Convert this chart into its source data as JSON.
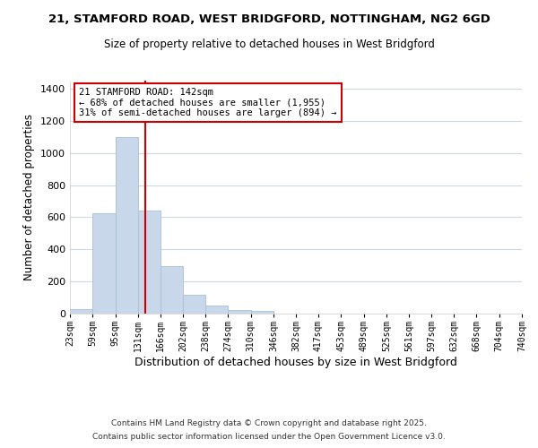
{
  "title_line1": "21, STAMFORD ROAD, WEST BRIDGFORD, NOTTINGHAM, NG2 6GD",
  "title_line2": "Size of property relative to detached houses in West Bridgford",
  "xlabel": "Distribution of detached houses by size in West Bridgford",
  "ylabel": "Number of detached properties",
  "bin_edges": [
    23,
    59,
    95,
    131,
    166,
    202,
    238,
    274,
    310,
    346,
    382,
    417,
    453,
    489,
    525,
    561,
    597,
    632,
    668,
    704,
    740
  ],
  "bar_heights": [
    30,
    625,
    1100,
    640,
    295,
    115,
    50,
    20,
    15,
    0,
    0,
    0,
    0,
    0,
    0,
    0,
    0,
    0,
    0,
    0
  ],
  "bar_color": "#c8d8ea",
  "bar_edgecolor": "#a8c0d4",
  "vline_x": 142,
  "vline_color": "#cc0000",
  "vline_linewidth": 1.5,
  "annotation_title": "21 STAMFORD ROAD: 142sqm",
  "annotation_line2": "← 68% of detached houses are smaller (1,955)",
  "annotation_line3": "31% of semi-detached houses are larger (894) →",
  "ylim": [
    0,
    1450
  ],
  "yticks": [
    0,
    200,
    400,
    600,
    800,
    1000,
    1200,
    1400
  ],
  "background_color": "#ffffff",
  "grid_color": "#ccd8e8",
  "footnote_line1": "Contains HM Land Registry data © Crown copyright and database right 2025.",
  "footnote_line2": "Contains public sector information licensed under the Open Government Licence v3.0.",
  "tick_labels": [
    "23sqm",
    "59sqm",
    "95sqm",
    "131sqm",
    "166sqm",
    "202sqm",
    "238sqm",
    "274sqm",
    "310sqm",
    "346sqm",
    "382sqm",
    "417sqm",
    "453sqm",
    "489sqm",
    "525sqm",
    "561sqm",
    "597sqm",
    "632sqm",
    "668sqm",
    "704sqm",
    "740sqm"
  ]
}
